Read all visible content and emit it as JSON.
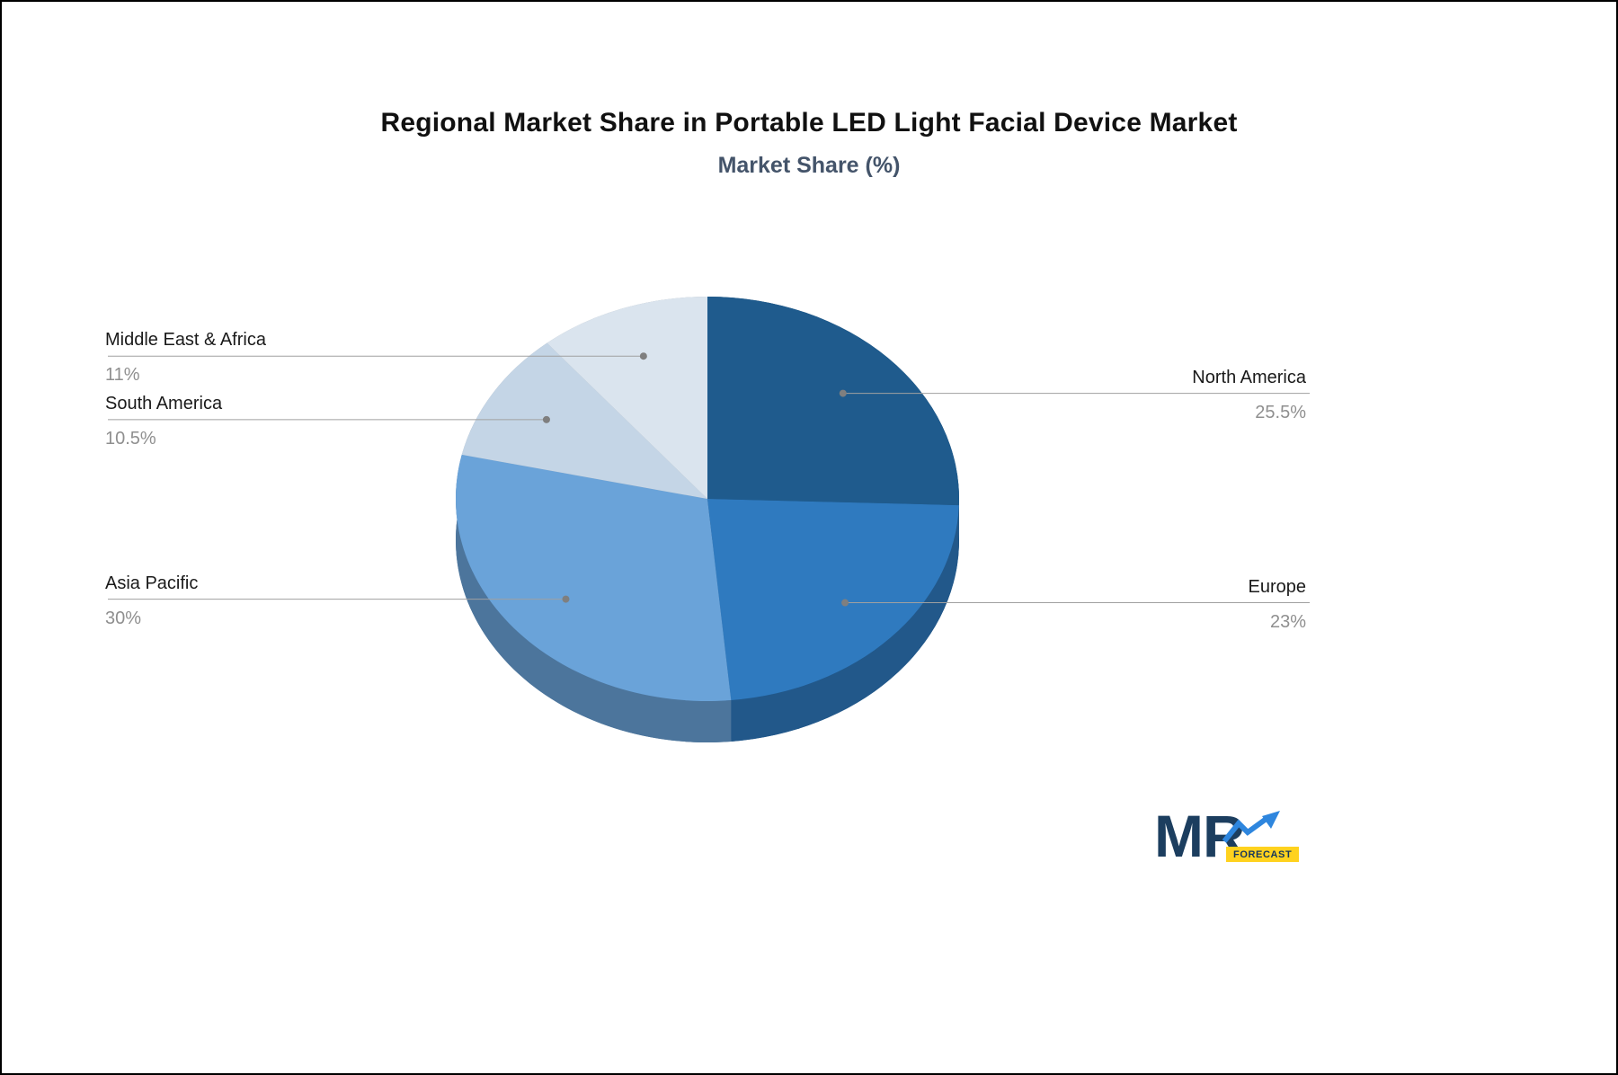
{
  "chart_data": {
    "type": "pie",
    "title": "Regional Market Share in Portable LED Light Facial Device Market",
    "subtitle": "Market Share (%)",
    "unit": "%",
    "start_angle": "top",
    "direction": "clockwise",
    "effect": "3d-depth",
    "legend_position": "none",
    "labels_style": "callout-lines-with-dots",
    "slices": [
      {
        "label": "North America",
        "value": 25.5,
        "display": "25.5%",
        "color": "#1F5B8D",
        "label_side": "right"
      },
      {
        "label": "Europe",
        "value": 23,
        "display": "23%",
        "color": "#2F7ABF",
        "label_side": "right"
      },
      {
        "label": "Asia Pacific",
        "value": 30,
        "display": "30%",
        "color": "#6AA3D9",
        "label_side": "left"
      },
      {
        "label": "South America",
        "value": 10.5,
        "display": "10.5%",
        "color": "#C4D5E6",
        "label_side": "left"
      },
      {
        "label": "Middle East & Africa",
        "value": 11,
        "display": "11%",
        "color": "#DAE4EE",
        "label_side": "left"
      }
    ]
  },
  "logo": {
    "text": "MR",
    "badge": "FORECAST",
    "brand_color": "#1C3E5F",
    "accent_color": "#2E86DE",
    "badge_color": "#FFD21E"
  }
}
